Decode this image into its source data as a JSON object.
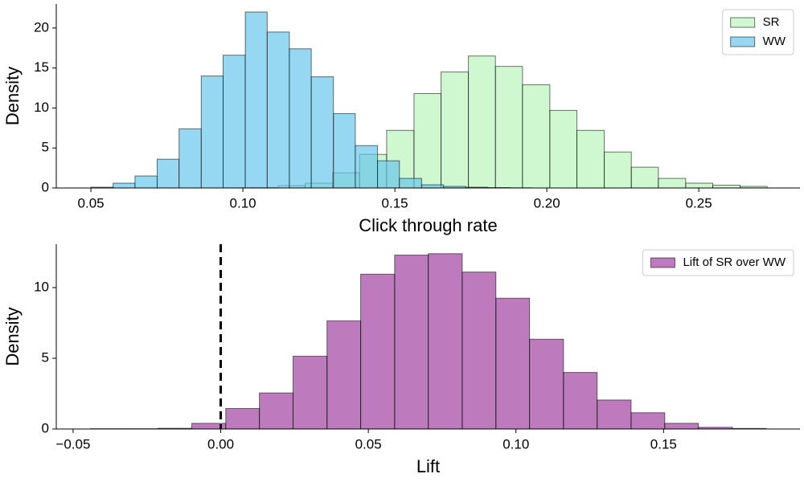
{
  "chart_data": [
    {
      "type": "histogram",
      "xlabel": "Click through rate",
      "ylabel": "Density",
      "xlim": [
        0.0386,
        0.2833
      ],
      "ylim": [
        0,
        23.0
      ],
      "xticks": [
        0.05,
        {
          "value": 0.1,
          "label": "0.10"
        },
        0.15,
        {
          "value": 0.2,
          "label": "0.20"
        },
        0.25
      ],
      "yticks": [
        0,
        5,
        10,
        15,
        20
      ],
      "legend": "upper right",
      "series": [
        {
          "name": "SR",
          "color": "rgba(144,238,144,0.42)",
          "bins": [
            0.0937,
            0.1026,
            0.1116,
            0.1205,
            0.1295,
            0.1384,
            0.1473,
            0.1563,
            0.1652,
            0.1742,
            0.1831,
            0.192,
            0.201,
            0.2099,
            0.2189,
            0.2278,
            0.2367,
            0.2457,
            0.2546,
            0.2636,
            0.2725
          ],
          "values": [
            0.02,
            0.05,
            0.3,
            0.6,
            1.9,
            4.2,
            7.2,
            11.8,
            14.5,
            16.5,
            15.2,
            12.9,
            9.7,
            7.2,
            4.5,
            2.6,
            1.2,
            0.6,
            0.35,
            0.2
          ]
        },
        {
          "name": "WW",
          "color": "rgba(100,196,235,0.68)",
          "bins": [
            0.05,
            0.0573,
            0.0645,
            0.0718,
            0.079,
            0.0863,
            0.0935,
            0.1008,
            0.108,
            0.1153,
            0.1225,
            0.1298,
            0.137,
            0.1443,
            0.1515,
            0.1588,
            0.166,
            0.1733,
            0.1805,
            0.1878,
            0.195
          ],
          "values": [
            0.1,
            0.6,
            1.5,
            3.6,
            7.4,
            14.0,
            16.6,
            22.0,
            19.5,
            17.4,
            13.9,
            9.3,
            5.3,
            3.4,
            1.2,
            0.4,
            0.2,
            0.1,
            0.05,
            0.02
          ]
        }
      ]
    },
    {
      "type": "histogram",
      "xlabel": "Lift",
      "ylabel": "Density",
      "xlim": [
        -0.0557,
        0.1962
      ],
      "ylim": [
        0,
        13.07
      ],
      "xticks": [
        {
          "value": -0.05,
          "label": "−0.05"
        },
        {
          "value": 0,
          "label": "0.00"
        },
        0.05,
        {
          "value": 0.1,
          "label": "0.10"
        },
        0.15
      ],
      "yticks": [
        0,
        5,
        10
      ],
      "legend": "upper right",
      "vline": 0,
      "series": [
        {
          "name": "Lift of SR over WW",
          "color": "rgba(128,0,128,0.52)",
          "bins": [
            -0.0441,
            -0.0327,
            -0.0212,
            -0.0098,
            0.0017,
            0.0131,
            0.0245,
            0.036,
            0.0474,
            0.0589,
            0.0703,
            0.0818,
            0.0932,
            0.1046,
            0.1161,
            0.1275,
            0.139,
            0.1504,
            0.1618,
            0.1733,
            0.1847
          ],
          "values": [
            0.02,
            0.02,
            0.05,
            0.4,
            1.45,
            2.55,
            5.15,
            7.65,
            10.95,
            12.3,
            12.4,
            11.1,
            9.25,
            6.35,
            4.0,
            2.05,
            1.15,
            0.4,
            0.12,
            0.04
          ]
        }
      ]
    }
  ]
}
